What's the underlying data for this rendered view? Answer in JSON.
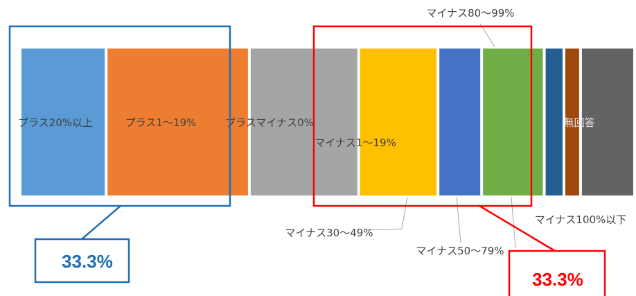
{
  "chart_data": {
    "type": "bar",
    "orientation": "horizontal-stacked",
    "title": "",
    "xlabel": "",
    "ylabel": "",
    "xlim": [
      0,
      100
    ],
    "categories": [
      "プラス20%以上",
      "プラス1～19%",
      "プラスマイナス0%",
      "マイナス1～19%",
      "マイナス30～49%",
      "マイナス50～79%",
      "マイナス80～99%",
      "マイナス100%以下",
      "無回答"
    ],
    "values": [
      14.0,
      23.3,
      17.8,
      12.9,
      7.1,
      10.2,
      3.2,
      2.7,
      8.8
    ],
    "colors": [
      "#5B9BD5",
      "#ED7D31",
      "#A5A5A5",
      "#FFC000",
      "#4472C4",
      "#70AD47",
      "#255E91",
      "#9E480E",
      "#636363"
    ],
    "legend": "none",
    "grid": false
  },
  "callouts": [
    {
      "value_label": "33.3%",
      "color": "#1F6FB4"
    },
    {
      "value_label": "33.3%",
      "color": "#FF0000"
    }
  ]
}
